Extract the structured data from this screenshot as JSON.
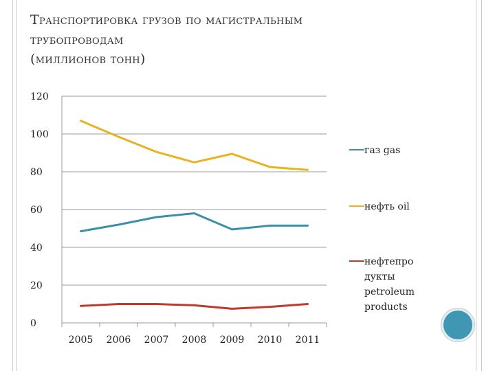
{
  "title": {
    "line1": "Транспортировка грузов по магистральным",
    "line2": "трубопроводам",
    "line3": "(миллионов тонн)"
  },
  "colors": {
    "gas": "#3b8fa8",
    "oil": "#e8b321",
    "products": "#c0392b",
    "grid": "#9a9a9a",
    "accent_circle": "#3f97b4"
  },
  "chart_data": {
    "type": "line",
    "title": "Транспортировка грузов по магистральным трубопроводам (миллионов тонн)",
    "x": [
      "2005",
      "2006",
      "2007",
      "2008",
      "2009",
      "2010",
      "2011"
    ],
    "ylim": [
      0,
      120
    ],
    "yticks": [
      0,
      20,
      40,
      60,
      80,
      100,
      120
    ],
    "grid": true,
    "legend_position": "right",
    "series": [
      {
        "name": "газ gas",
        "legend_lines": [
          "газ gas"
        ],
        "color": "#3b8fa8",
        "values": [
          48.5,
          52,
          56,
          58,
          49.5,
          51.5,
          51.5
        ]
      },
      {
        "name": "нефть oil",
        "legend_lines": [
          "нефть oil"
        ],
        "color": "#e8b321",
        "values": [
          107,
          98.5,
          90.5,
          85,
          89.5,
          82.5,
          81
        ]
      },
      {
        "name": "нефтепродукты petroleum products",
        "legend_lines": [
          "нефтепро",
          "дукты",
          "petroleum",
          "products"
        ],
        "color": "#c0392b",
        "values": [
          9,
          10,
          10,
          9.3,
          7.5,
          8.5,
          10
        ]
      }
    ]
  }
}
